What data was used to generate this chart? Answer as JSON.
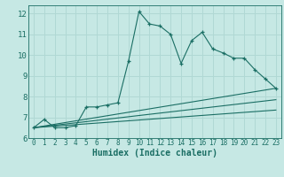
{
  "xlabel": "Humidex (Indice chaleur)",
  "ylabel": "",
  "xlim": [
    -0.5,
    23.5
  ],
  "ylim": [
    6,
    12.4
  ],
  "xticks": [
    0,
    1,
    2,
    3,
    4,
    5,
    6,
    7,
    8,
    9,
    10,
    11,
    12,
    13,
    14,
    15,
    16,
    17,
    18,
    19,
    20,
    21,
    22,
    23
  ],
  "yticks": [
    6,
    7,
    8,
    9,
    10,
    11,
    12
  ],
  "background_color": "#c6e8e4",
  "line_color": "#1a6e64",
  "grid_color": "#b0d8d4",
  "lines": [
    {
      "x": [
        0,
        1,
        2,
        3,
        4,
        5,
        6,
        7,
        8,
        9,
        10,
        11,
        12,
        13,
        14,
        15,
        16,
        17,
        18,
        19,
        20,
        21,
        22,
        23
      ],
      "y": [
        6.5,
        6.9,
        6.5,
        6.5,
        6.6,
        7.5,
        7.5,
        7.6,
        7.7,
        9.7,
        12.1,
        11.5,
        11.4,
        11.0,
        9.6,
        10.7,
        11.1,
        10.3,
        10.1,
        9.85,
        9.85,
        9.3,
        8.85,
        8.4
      ],
      "markers": true
    },
    {
      "x": [
        0,
        23
      ],
      "y": [
        6.5,
        8.4
      ],
      "markers": false
    },
    {
      "x": [
        0,
        23
      ],
      "y": [
        6.5,
        7.85
      ],
      "markers": false
    },
    {
      "x": [
        0,
        23
      ],
      "y": [
        6.5,
        7.35
      ],
      "markers": false
    }
  ],
  "xlabel_fontsize": 7,
  "tick_fontsize": 5.5,
  "ytick_fontsize": 6.5
}
